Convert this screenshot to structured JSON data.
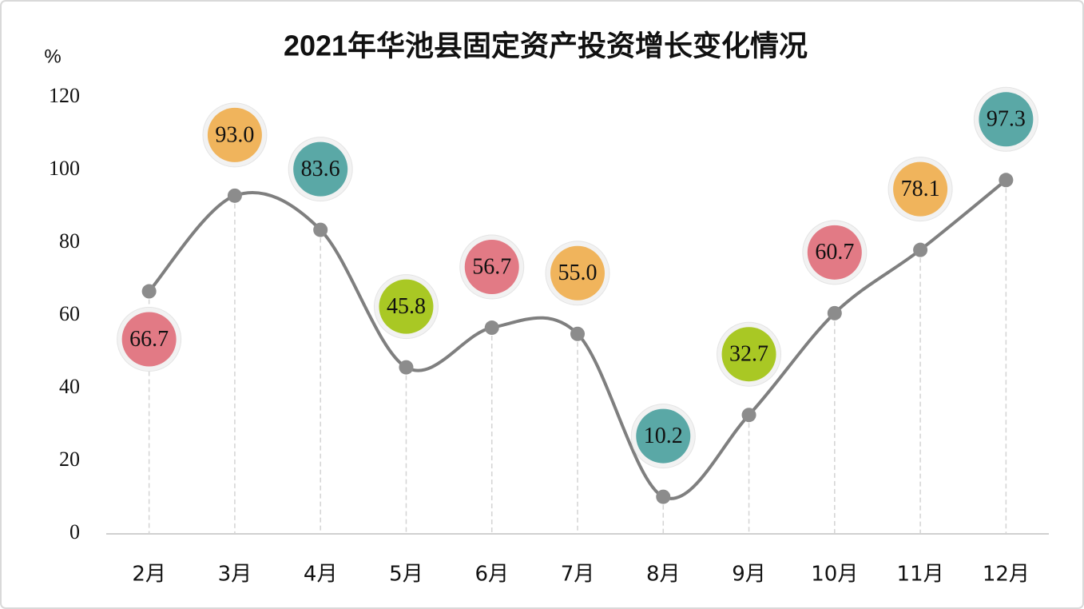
{
  "chart_data": {
    "type": "line",
    "title": "2021年华池县固定资产投资增长变化情况",
    "y_label": "%",
    "categories": [
      "2月",
      "3月",
      "4月",
      "5月",
      "6月",
      "7月",
      "8月",
      "9月",
      "10月",
      "11月",
      "12月"
    ],
    "values": [
      66.7,
      93.0,
      83.6,
      45.8,
      56.7,
      55.0,
      10.2,
      32.7,
      60.7,
      78.1,
      97.3
    ],
    "value_labels": [
      "66.7",
      "93.0",
      "83.6",
      "45.8",
      "56.7",
      "55.0",
      "10.2",
      "32.7",
      "60.7",
      "78.1",
      "97.3"
    ],
    "label_colors": [
      "#e27a85",
      "#f0b45c",
      "#5aa8a6",
      "#a9c824",
      "#e27a85",
      "#f0b45c",
      "#5aa8a6",
      "#a9c824",
      "#e27a85",
      "#f0b45c",
      "#5aa8a6"
    ],
    "color": "#7f7f7f",
    "marker_color": "#8c8c8c",
    "ylim": [
      0,
      120
    ],
    "yticks": [
      0,
      20,
      40,
      60,
      80,
      100,
      120
    ],
    "grid": false
  }
}
